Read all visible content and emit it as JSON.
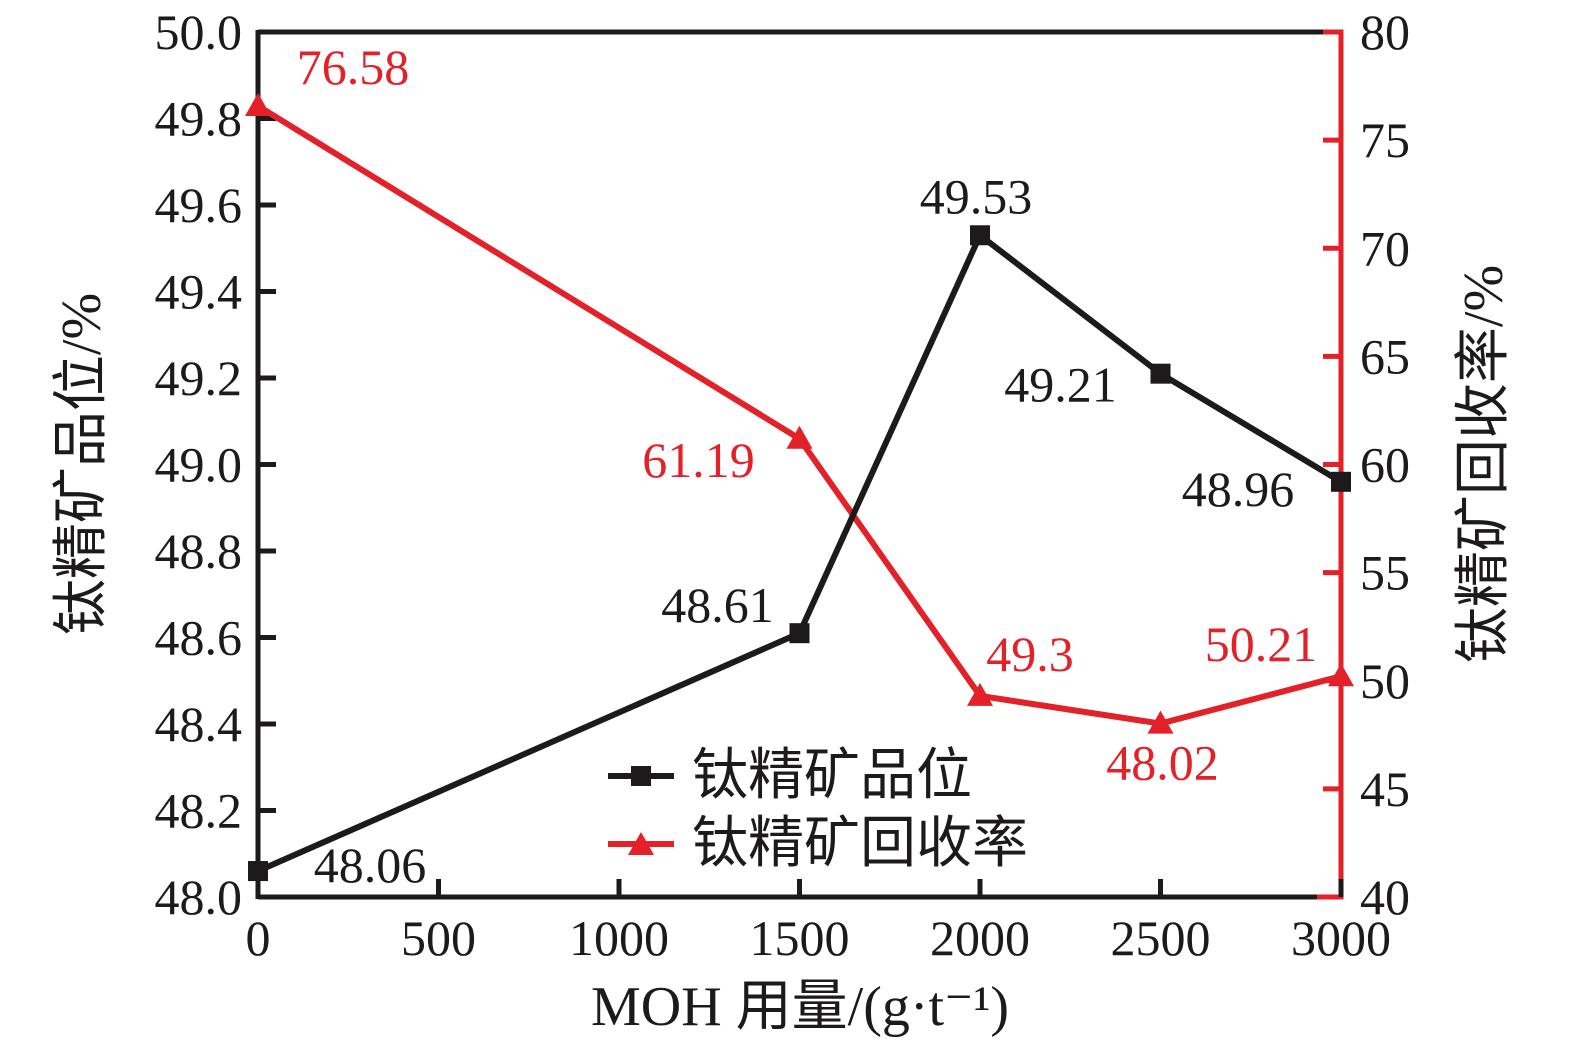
{
  "colors": {
    "background": "#ffffff",
    "axis_black": "#1c1a1a",
    "axis_red": "#e22128",
    "tick_label": "#1c1a1a"
  },
  "chart_data": {
    "type": "line",
    "title": "",
    "grid": false,
    "x": [
      0,
      1500,
      2000,
      2500,
      3000
    ],
    "x_axis": {
      "label": "MOH 用量/(g·t⁻¹)",
      "min": 0,
      "max": 3000,
      "ticks": [
        0,
        500,
        1000,
        1500,
        2000,
        2500,
        3000
      ],
      "tick_labels": [
        "0",
        "500",
        "1000",
        "1500",
        "2000",
        "2500",
        "3000"
      ]
    },
    "left_axis": {
      "label": "钛精矿品位/%",
      "min": 48.0,
      "max": 50.0,
      "ticks": [
        48.0,
        48.2,
        48.4,
        48.6,
        48.8,
        49.0,
        49.2,
        49.4,
        49.6,
        49.8,
        50.0
      ],
      "tick_labels": [
        "48.0",
        "48.2",
        "48.4",
        "48.6",
        "48.8",
        "49.0",
        "49.2",
        "49.4",
        "49.6",
        "49.8",
        "50.0"
      ]
    },
    "right_axis": {
      "label": "钛精矿回收率/%",
      "min": 40,
      "max": 80,
      "ticks": [
        40,
        45,
        50,
        55,
        60,
        65,
        70,
        75,
        80
      ],
      "tick_labels": [
        "40",
        "45",
        "50",
        "55",
        "60",
        "65",
        "70",
        "75",
        "80"
      ]
    },
    "legend": {
      "position": "inside-bottom-center",
      "entries": [
        {
          "label": "钛精矿品位",
          "marker": "square",
          "color": "#1c1a1a"
        },
        {
          "label": "钛精矿回收率",
          "marker": "triangle",
          "color": "#e22128"
        }
      ]
    },
    "series": [
      {
        "name": "钛精矿品位",
        "axis": "left",
        "marker": "square",
        "color": "#1c1a1a",
        "values": [
          48.06,
          48.61,
          49.53,
          49.21,
          48.96
        ],
        "point_labels": [
          "48.06",
          "48.61",
          "49.53",
          "49.21",
          "48.96"
        ],
        "label_offsets": [
          [
            112,
            -6
          ],
          [
            -82,
            -28
          ],
          [
            -4,
            -39
          ],
          [
            -100,
            11
          ],
          [
            -103,
            7
          ]
        ]
      },
      {
        "name": "钛精矿回收率",
        "axis": "right",
        "marker": "triangle",
        "color": "#e22128",
        "values": [
          76.58,
          61.19,
          49.3,
          48.02,
          50.21
        ],
        "point_labels": [
          "76.58",
          "61.19",
          "49.3",
          "48.02",
          "50.21"
        ],
        "label_offsets": [
          [
            95,
            -39
          ],
          [
            -101,
            21
          ],
          [
            50,
            -42
          ],
          [
            2,
            39
          ],
          [
            -80,
            -32
          ]
        ]
      }
    ]
  }
}
